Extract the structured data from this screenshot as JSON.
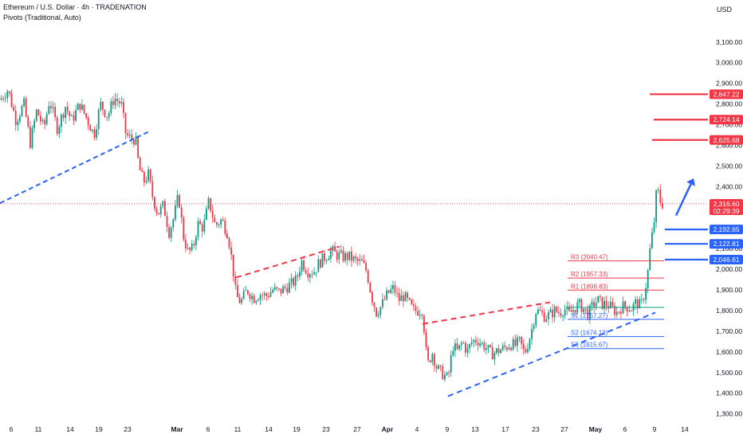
{
  "header": {
    "title": "Ethereum / U.S. Dollar · 4h · TRADENATION",
    "indicator": "Pivots (Traditional, Auto)",
    "currency": "USD"
  },
  "chart_data": {
    "type": "candlestick",
    "ylim": [
      1260,
      3180
    ],
    "y_ticks": [
      1300,
      1400,
      1500,
      1600,
      1700,
      1800,
      1900,
      2000,
      2100,
      2200,
      2300,
      2400,
      2500,
      2600,
      2700,
      2800,
      2900,
      3000,
      3100
    ],
    "y_tick_labels": [
      "1,300.00",
      "1,400.00",
      "1,500.00",
      "1,600.00",
      "1,700.00",
      "1,800.00",
      "1,900.00",
      "2,000.00",
      "2,100.00",
      "2,200.00",
      "2,300.00",
      "2,400.00",
      "2,500.00",
      "2,600.00",
      "2,700.00",
      "2,800.00",
      "2,900.00",
      "3,000.00",
      "3,100.00"
    ],
    "x_ticks": [
      {
        "label": "6",
        "x": 14,
        "bold": false
      },
      {
        "label": "11",
        "x": 48,
        "bold": false
      },
      {
        "label": "14",
        "x": 88,
        "bold": false
      },
      {
        "label": "19",
        "x": 124,
        "bold": false
      },
      {
        "label": "23",
        "x": 160,
        "bold": false
      },
      {
        "label": "Mar",
        "x": 222,
        "bold": true
      },
      {
        "label": "6",
        "x": 261,
        "bold": false
      },
      {
        "label": "11",
        "x": 298,
        "bold": false
      },
      {
        "label": "14",
        "x": 337,
        "bold": false
      },
      {
        "label": "19",
        "x": 372,
        "bold": false
      },
      {
        "label": "23",
        "x": 409,
        "bold": false
      },
      {
        "label": "27",
        "x": 448,
        "bold": false
      },
      {
        "label": "Apr",
        "x": 486,
        "bold": true
      },
      {
        "label": "4",
        "x": 523,
        "bold": false
      },
      {
        "label": "9",
        "x": 561,
        "bold": false
      },
      {
        "label": "13",
        "x": 596,
        "bold": false
      },
      {
        "label": "17",
        "x": 634,
        "bold": false
      },
      {
        "label": "23",
        "x": 672,
        "bold": false
      },
      {
        "label": "27",
        "x": 708,
        "bold": false
      },
      {
        "label": "May",
        "x": 747,
        "bold": true
      },
      {
        "label": "6",
        "x": 784,
        "bold": false
      },
      {
        "label": "9",
        "x": 821,
        "bold": false
      },
      {
        "label": "14",
        "x": 859,
        "bold": false
      }
    ],
    "price_path": [
      [
        0,
        2820
      ],
      [
        10,
        2870
      ],
      [
        20,
        2720
      ],
      [
        30,
        2800
      ],
      [
        38,
        2610
      ],
      [
        46,
        2770
      ],
      [
        55,
        2680
      ],
      [
        62,
        2820
      ],
      [
        72,
        2680
      ],
      [
        82,
        2790
      ],
      [
        90,
        2720
      ],
      [
        100,
        2800
      ],
      [
        110,
        2720
      ],
      [
        118,
        2650
      ],
      [
        126,
        2800
      ],
      [
        135,
        2740
      ],
      [
        143,
        2830
      ],
      [
        152,
        2800
      ],
      [
        158,
        2650
      ],
      [
        165,
        2630
      ],
      [
        170,
        2630
      ],
      [
        174,
        2500
      ],
      [
        180,
        2420
      ],
      [
        186,
        2460
      ],
      [
        192,
        2340
      ],
      [
        198,
        2270
      ],
      [
        205,
        2310
      ],
      [
        212,
        2180
      ],
      [
        218,
        2250
      ],
      [
        224,
        2360
      ],
      [
        230,
        2160
      ],
      [
        236,
        2080
      ],
      [
        242,
        2100
      ],
      [
        248,
        2220
      ],
      [
        255,
        2200
      ],
      [
        262,
        2330
      ],
      [
        270,
        2210
      ],
      [
        278,
        2240
      ],
      [
        286,
        2170
      ],
      [
        292,
        2010
      ],
      [
        296,
        1870
      ],
      [
        302,
        1840
      ],
      [
        310,
        1900
      ],
      [
        318,
        1860
      ],
      [
        326,
        1880
      ],
      [
        334,
        1870
      ],
      [
        342,
        1900
      ],
      [
        350,
        1890
      ],
      [
        358,
        1910
      ],
      [
        366,
        1930
      ],
      [
        372,
        1950
      ],
      [
        378,
        2040
      ],
      [
        386,
        1990
      ],
      [
        394,
        1990
      ],
      [
        400,
        2030
      ],
      [
        408,
        2060
      ],
      [
        416,
        2090
      ],
      [
        422,
        2070
      ],
      [
        430,
        2060
      ],
      [
        438,
        2060
      ],
      [
        446,
        2040
      ],
      [
        454,
        2030
      ],
      [
        460,
        1990
      ],
      [
        466,
        1870
      ],
      [
        472,
        1790
      ],
      [
        478,
        1820
      ],
      [
        486,
        1880
      ],
      [
        494,
        1910
      ],
      [
        500,
        1850
      ],
      [
        506,
        1870
      ],
      [
        512,
        1840
      ],
      [
        518,
        1800
      ],
      [
        524,
        1800
      ],
      [
        530,
        1805
      ],
      [
        536,
        1530
      ],
      [
        542,
        1600
      ],
      [
        548,
        1520
      ],
      [
        556,
        1490
      ],
      [
        562,
        1470
      ],
      [
        568,
        1630
      ],
      [
        574,
        1600
      ],
      [
        580,
        1650
      ],
      [
        586,
        1600
      ],
      [
        592,
        1650
      ],
      [
        598,
        1660
      ],
      [
        604,
        1640
      ],
      [
        610,
        1620
      ],
      [
        616,
        1590
      ],
      [
        622,
        1600
      ],
      [
        628,
        1610
      ],
      [
        634,
        1620
      ],
      [
        640,
        1640
      ],
      [
        646,
        1630
      ],
      [
        652,
        1650
      ],
      [
        658,
        1590
      ],
      [
        662,
        1640
      ],
      [
        666,
        1690
      ],
      [
        672,
        1800
      ],
      [
        678,
        1790
      ],
      [
        684,
        1770
      ],
      [
        690,
        1780
      ],
      [
        696,
        1800
      ],
      [
        702,
        1790
      ],
      [
        708,
        1810
      ],
      [
        714,
        1780
      ],
      [
        720,
        1810
      ],
      [
        726,
        1830
      ],
      [
        732,
        1810
      ],
      [
        738,
        1780
      ],
      [
        744,
        1830
      ],
      [
        750,
        1850
      ],
      [
        756,
        1830
      ],
      [
        762,
        1830
      ],
      [
        768,
        1810
      ],
      [
        774,
        1790
      ],
      [
        780,
        1820
      ],
      [
        786,
        1820
      ],
      [
        792,
        1810
      ],
      [
        798,
        1840
      ],
      [
        804,
        1820
      ],
      [
        808,
        1880
      ],
      [
        812,
        1960
      ],
      [
        816,
        2120
      ],
      [
        820,
        2210
      ],
      [
        824,
        2400
      ],
      [
        828,
        2330
      ],
      [
        831,
        2316.6
      ]
    ],
    "trendlines": [
      {
        "color": "#2962ff",
        "dash": "6,4",
        "from": [
          0,
          2320
        ],
        "to": [
          186,
          2665
        ]
      },
      {
        "color": "#f23645",
        "dash": "7,5",
        "from": [
          296,
          1960
        ],
        "to": [
          426,
          2110
        ]
      },
      {
        "color": "#f23645",
        "dash": "7,5",
        "from": [
          530,
          1735
        ],
        "to": [
          690,
          1840
        ]
      },
      {
        "color": "#2962ff",
        "dash": "7,5",
        "from": [
          562,
          1385
        ],
        "to": [
          822,
          1790
        ]
      }
    ],
    "resistance_levels": [
      {
        "value": 2847.22,
        "label": "2,847.22",
        "x_start": 815
      },
      {
        "value": 2724.14,
        "label": "2,724.14",
        "x_start": 820
      },
      {
        "value": 2625.68,
        "label": "2,625.68",
        "x_start": 818
      }
    ],
    "support_levels": [
      {
        "value": 2192.65,
        "label": "2,192.65",
        "x_start": 834
      },
      {
        "value": 2122.81,
        "label": "2,122.81",
        "x_start": 834
      },
      {
        "value": 2046.61,
        "label": "2,046.61",
        "x_start": 834
      }
    ],
    "pivots": [
      {
        "name": "R3",
        "label": "R3 (2040.47)",
        "value": 2040.47,
        "color": "#f23645"
      },
      {
        "name": "R2",
        "label": "R2 (1957.33)",
        "value": 1957.33,
        "color": "#f23645"
      },
      {
        "name": "R1",
        "label": "R1 (1898.83)",
        "value": 1898.83,
        "color": "#f23645"
      },
      {
        "name": "P",
        "label": "",
        "value": 1815,
        "color": "#089981"
      },
      {
        "name": "S1",
        "label": "S1 (1757.27)",
        "value": 1757.27,
        "color": "#2962ff"
      },
      {
        "name": "S2",
        "label": "S2 (1674.13)",
        "value": 1674.13,
        "color": "#2962ff"
      },
      {
        "name": "S3",
        "label": "S3 (1615.67)",
        "value": 1615.67,
        "color": "#2962ff"
      }
    ],
    "current_price": {
      "value": 2316.6,
      "label": "2,316.60",
      "countdown": "02:29:39"
    },
    "arrow": {
      "from": [
        848,
        2260
      ],
      "to": [
        870,
        2440
      ],
      "color": "#2962ff"
    },
    "colors": {
      "up": "#089981",
      "down": "#f23645",
      "text": "#131722",
      "resistance": "#f23645",
      "support": "#2962ff"
    }
  }
}
